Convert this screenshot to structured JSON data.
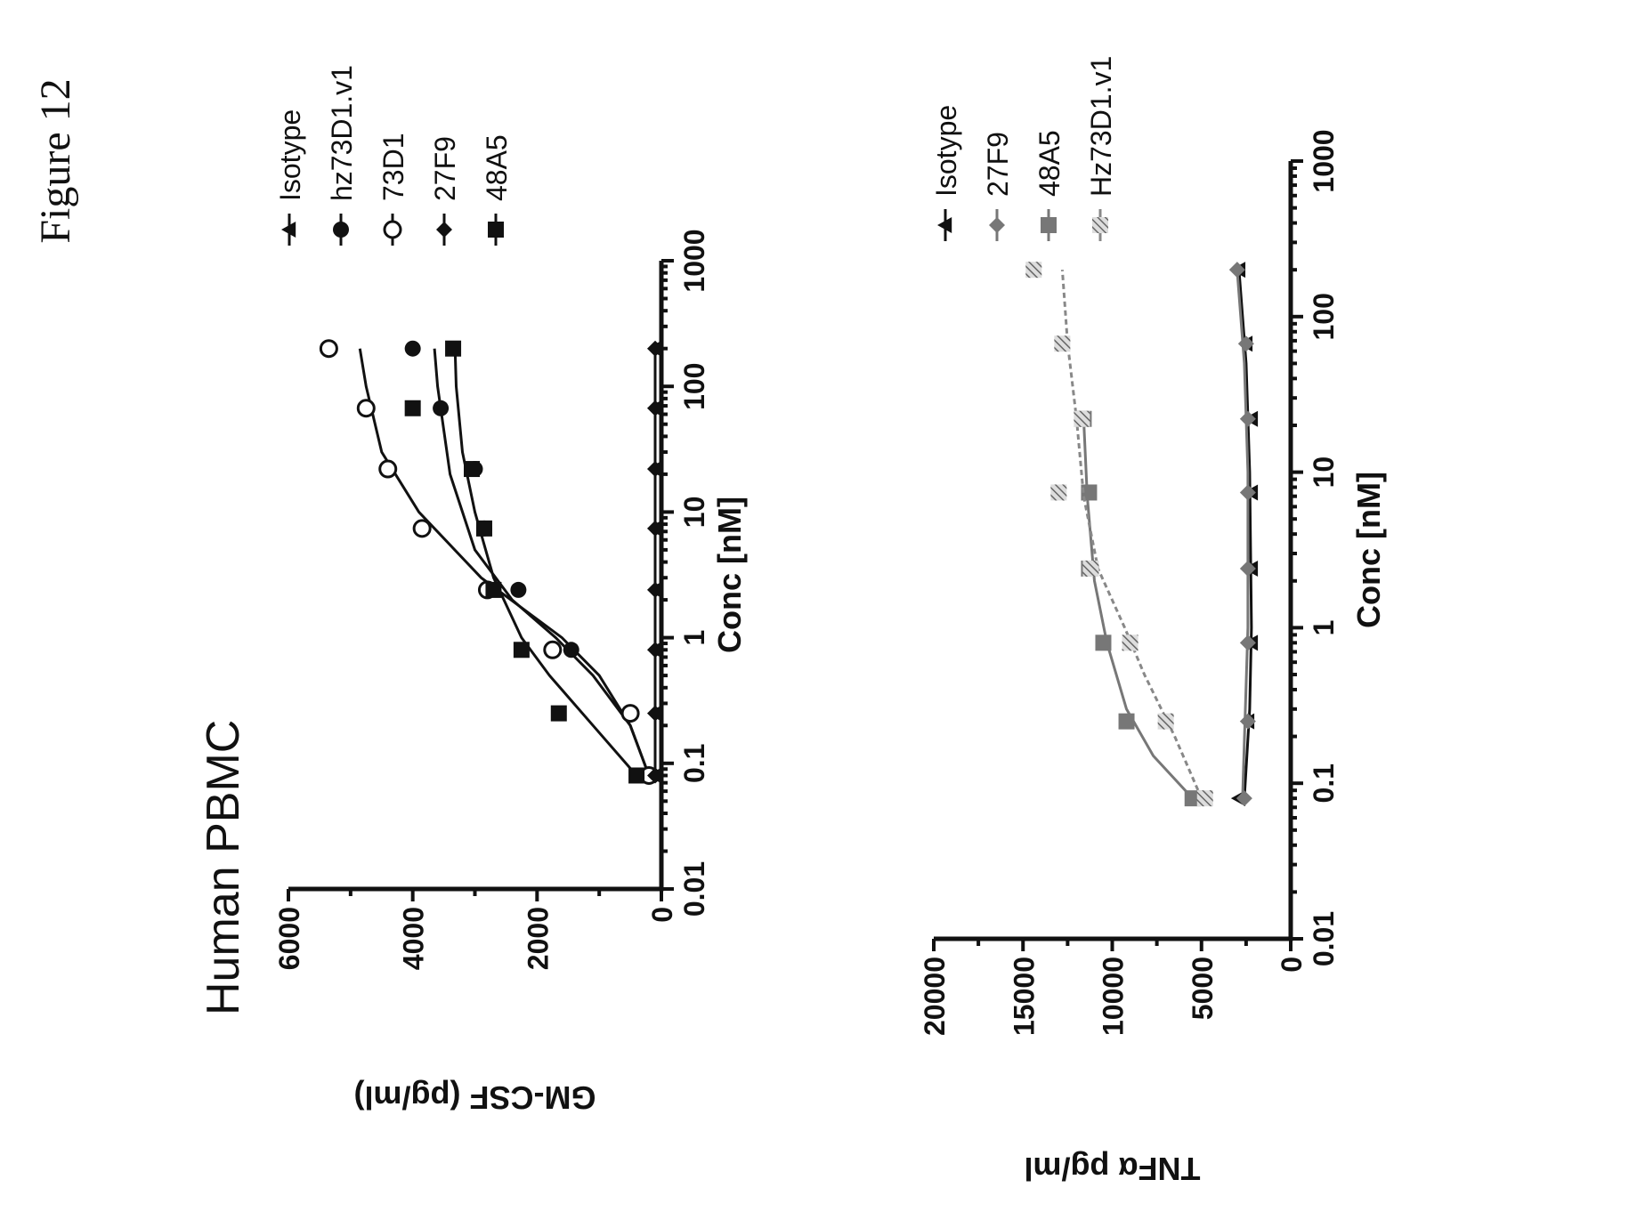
{
  "figure": {
    "label": "Figure 12",
    "panel_title": "Human PBMC"
  },
  "chart_data": [
    {
      "type": "scatter",
      "title": "",
      "xlabel": "Conc [nM]",
      "ylabel": "GM-CSF (pg/ml)",
      "xscale": "log",
      "xlim": [
        0.01,
        1000
      ],
      "ylim": [
        0,
        6000
      ],
      "xticks": [
        "0.01",
        "0.1",
        "1",
        "10",
        "100",
        "1000"
      ],
      "yticks": [
        "0",
        "2000",
        "4000",
        "6000"
      ],
      "legend_position": "right",
      "series": [
        {
          "name": "Isotype",
          "marker": "triangle",
          "color": "#111111",
          "x": [
            0.08,
            0.25,
            0.8,
            2.4,
            7.4,
            22,
            67,
            200
          ],
          "y": [
            100,
            100,
            100,
            100,
            100,
            100,
            100,
            100
          ],
          "fit": [
            [
              0.08,
              100
            ],
            [
              200,
              100
            ]
          ]
        },
        {
          "name": "hz73D1.v1",
          "marker": "circle-filled",
          "color": "#111111",
          "x": [
            0.08,
            0.25,
            0.8,
            2.4,
            7.4,
            22,
            67,
            200
          ],
          "y": [
            150,
            500,
            1450,
            2300,
            2850,
            3000,
            3550,
            4000
          ],
          "fit": [
            [
              0.08,
              200
            ],
            [
              0.2,
              500
            ],
            [
              0.5,
              1100
            ],
            [
              1,
              1700
            ],
            [
              2,
              2400
            ],
            [
              5,
              3000
            ],
            [
              20,
              3400
            ],
            [
              100,
              3600
            ],
            [
              200,
              3650
            ]
          ]
        },
        {
          "name": "73D1",
          "marker": "circle-open",
          "color": "#111111",
          "x": [
            0.08,
            0.25,
            0.8,
            2.4,
            7.4,
            22,
            67,
            200
          ],
          "y": [
            200,
            500,
            1750,
            2800,
            3850,
            4400,
            4750,
            5350
          ],
          "fit": [
            [
              0.08,
              200
            ],
            [
              0.2,
              500
            ],
            [
              0.5,
              1000
            ],
            [
              1,
              1600
            ],
            [
              3,
              2900
            ],
            [
              10,
              3900
            ],
            [
              30,
              4500
            ],
            [
              100,
              4750
            ],
            [
              200,
              4850
            ]
          ]
        },
        {
          "name": "27F9",
          "marker": "diamond",
          "color": "#111111",
          "x": [
            0.08,
            0.25,
            0.8,
            2.4,
            7.4,
            22,
            67,
            200
          ],
          "y": [
            100,
            100,
            100,
            100,
            100,
            100,
            100,
            100
          ],
          "fit": [
            [
              0.08,
              100
            ],
            [
              200,
              100
            ]
          ]
        },
        {
          "name": "48A5",
          "marker": "square",
          "color": "#111111",
          "x": [
            0.08,
            0.25,
            0.8,
            2.4,
            7.4,
            22,
            67,
            200
          ],
          "y": [
            400,
            1650,
            2250,
            2700,
            2850,
            3050,
            4000,
            3350
          ],
          "fit": [
            [
              0.08,
              400
            ],
            [
              0.2,
              1100
            ],
            [
              0.5,
              1800
            ],
            [
              1,
              2250
            ],
            [
              3,
              2700
            ],
            [
              10,
              3000
            ],
            [
              30,
              3200
            ],
            [
              100,
              3300
            ],
            [
              200,
              3320
            ]
          ]
        }
      ]
    },
    {
      "type": "scatter",
      "title": "",
      "xlabel": "Conc [nM]",
      "ylabel": "TNFα pg/ml",
      "xscale": "log",
      "xlim": [
        0.01,
        1000
      ],
      "ylim": [
        0,
        20000
      ],
      "xticks": [
        "0.01",
        "0.1",
        "1",
        "10",
        "100",
        "1000"
      ],
      "yticks": [
        "0",
        "5000",
        "10000",
        "15000",
        "20000"
      ],
      "legend_position": "right",
      "series": [
        {
          "name": "Isotype",
          "marker": "triangle",
          "color": "#111111",
          "x": [
            0.08,
            0.25,
            0.8,
            2.4,
            7.4,
            22,
            67,
            200
          ],
          "y": [
            2900,
            2400,
            2200,
            2200,
            2200,
            2200,
            2500,
            2900
          ],
          "fit": [
            [
              0.08,
              2600
            ],
            [
              0.3,
              2300
            ],
            [
              1,
              2200
            ],
            [
              10,
              2300
            ],
            [
              50,
              2500
            ],
            [
              200,
              2900
            ]
          ]
        },
        {
          "name": "27F9",
          "marker": "diamond",
          "color": "#777777",
          "x": [
            0.08,
            0.25,
            0.8,
            2.4,
            7.4,
            22,
            67,
            200
          ],
          "y": [
            2600,
            2400,
            2400,
            2400,
            2400,
            2400,
            2500,
            3000
          ],
          "fit": [
            [
              0.08,
              2700
            ],
            [
              1,
              2400
            ],
            [
              10,
              2400
            ],
            [
              50,
              2600
            ],
            [
              200,
              3000
            ]
          ]
        },
        {
          "name": "48A5",
          "marker": "square",
          "color": "#777777",
          "x": [
            0.08,
            0.25,
            0.8,
            2.4,
            7.4,
            22
          ],
          "y": [
            5500,
            9200,
            10500,
            11300,
            11300,
            11600
          ],
          "fit": [
            [
              0.08,
              5500
            ],
            [
              0.15,
              7700
            ],
            [
              0.3,
              9200
            ],
            [
              0.8,
              10300
            ],
            [
              2,
              11000
            ],
            [
              7,
              11400
            ],
            [
              22,
              11600
            ]
          ]
        },
        {
          "name": "Hz73D1.v1",
          "marker": "hatched",
          "color": "#888888",
          "x": [
            0.08,
            0.25,
            0.8,
            2.4,
            7.4,
            22,
            67,
            200
          ],
          "y": [
            4800,
            7000,
            9000,
            11200,
            13000,
            11700,
            12800,
            14400
          ],
          "fit": [
            [
              0.08,
              5000
            ],
            [
              0.2,
              6500
            ],
            [
              0.5,
              8200
            ],
            [
              1,
              9300
            ],
            [
              2.4,
              10800
            ],
            [
              7,
              11600
            ],
            [
              22,
              12000
            ],
            [
              67,
              12500
            ],
            [
              200,
              12800
            ]
          ]
        }
      ]
    }
  ]
}
